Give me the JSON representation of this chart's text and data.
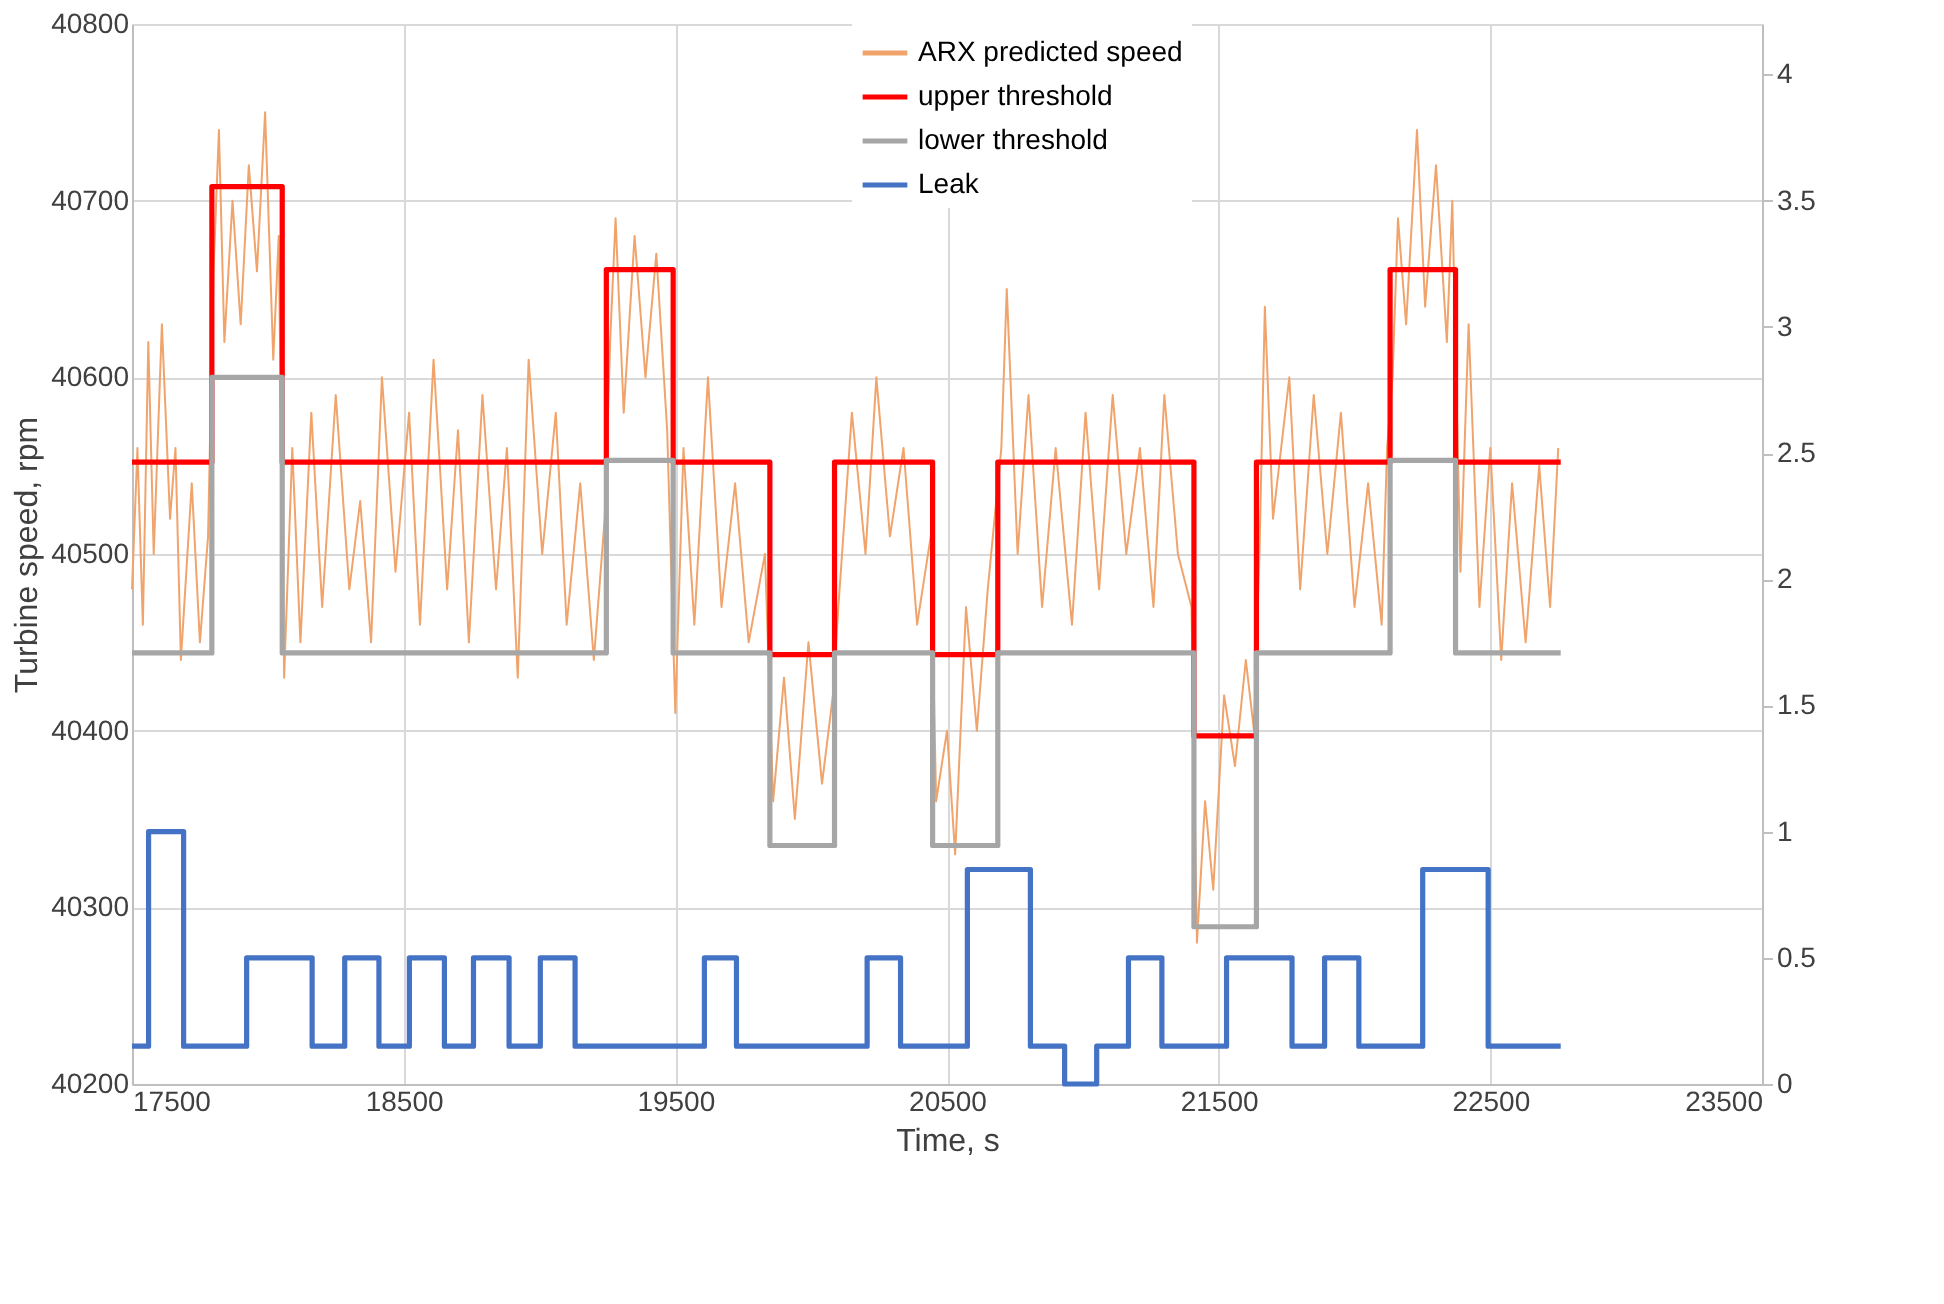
{
  "chart_data": {
    "type": "line",
    "xlabel": "Time, s",
    "ylabel": "Turbine speed, rpm",
    "xlim": [
      17500,
      23500
    ],
    "xticks": [
      17500,
      18500,
      19500,
      20500,
      21500,
      22500,
      23500
    ],
    "ylim": [
      40200,
      40800
    ],
    "yticks": [
      40200,
      40300,
      40400,
      40500,
      40600,
      40700,
      40800
    ],
    "y2lim": [
      0,
      4.2
    ],
    "y2ticks": [
      0,
      0.5,
      1,
      1.5,
      2,
      2.5,
      3,
      3.5,
      4
    ],
    "grid": true,
    "legend": "top",
    "series": [
      {
        "name": "ARX predicted speed",
        "color": "#f0a46c",
        "x": [
          17500,
          17520,
          17540,
          17560,
          17580,
          17610,
          17640,
          17660,
          17680,
          17720,
          17750,
          17780,
          17800,
          17820,
          17840,
          17870,
          17900,
          17930,
          17960,
          17990,
          18020,
          18040,
          18060,
          18090,
          18120,
          18160,
          18200,
          18250,
          18300,
          18340,
          18380,
          18420,
          18470,
          18520,
          18560,
          18610,
          18660,
          18700,
          18740,
          18790,
          18840,
          18880,
          18920,
          18960,
          19010,
          19060,
          19100,
          19150,
          19200,
          19240,
          19260,
          19280,
          19310,
          19350,
          19390,
          19430,
          19470,
          19500,
          19530,
          19570,
          19620,
          19670,
          19720,
          19770,
          19830,
          19860,
          19900,
          19940,
          19990,
          20040,
          20080,
          20100,
          20150,
          20200,
          20240,
          20290,
          20340,
          20390,
          20440,
          20460,
          20500,
          20530,
          20570,
          20610,
          20650,
          20700,
          20720,
          20760,
          20800,
          20850,
          20900,
          20960,
          21010,
          21060,
          21110,
          21160,
          21210,
          21260,
          21300,
          21350,
          21400,
          21420,
          21450,
          21480,
          21520,
          21560,
          21600,
          21630,
          21650,
          21670,
          21700,
          21760,
          21800,
          21850,
          21900,
          21950,
          22000,
          22050,
          22100,
          22120,
          22140,
          22160,
          22190,
          22230,
          22260,
          22300,
          22340,
          22360,
          22390,
          22420,
          22460,
          22500,
          22540,
          22580,
          22630,
          22680,
          22720,
          22750
        ],
        "values": [
          40480,
          40560,
          40460,
          40620,
          40500,
          40630,
          40520,
          40560,
          40440,
          40540,
          40450,
          40510,
          40660,
          40740,
          40620,
          40700,
          40630,
          40720,
          40660,
          40750,
          40610,
          40680,
          40430,
          40560,
          40450,
          40580,
          40470,
          40590,
          40480,
          40530,
          40450,
          40600,
          40490,
          40580,
          40460,
          40610,
          40480,
          40570,
          40450,
          40590,
          40480,
          40560,
          40430,
          40610,
          40500,
          40580,
          40460,
          40540,
          40440,
          40520,
          40620,
          40690,
          40580,
          40680,
          40600,
          40670,
          40570,
          40410,
          40560,
          40460,
          40600,
          40470,
          40540,
          40450,
          40500,
          40360,
          40430,
          40350,
          40450,
          40370,
          40420,
          40470,
          40580,
          40500,
          40600,
          40510,
          40560,
          40460,
          40510,
          40360,
          40400,
          40330,
          40470,
          40400,
          40480,
          40560,
          40650,
          40500,
          40590,
          40470,
          40560,
          40460,
          40580,
          40480,
          40590,
          40500,
          40560,
          40470,
          40590,
          40500,
          40470,
          40280,
          40360,
          40310,
          40420,
          40380,
          40440,
          40400,
          40500,
          40640,
          40520,
          40600,
          40480,
          40590,
          40500,
          40580,
          40470,
          40540,
          40460,
          40560,
          40600,
          40690,
          40630,
          40740,
          40640,
          40720,
          40620,
          40700,
          40490,
          40630,
          40470,
          40560,
          40440,
          40540,
          40450,
          40550,
          40470,
          40560
        ]
      },
      {
        "name": "upper threshold",
        "color": "#ff0000",
        "type": "step",
        "x": [
          17500,
          17794,
          18053,
          19246,
          19492,
          19848,
          20086,
          20447,
          20687,
          21409,
          21639,
          22131,
          22372,
          22759
        ],
        "values": [
          40552,
          40708,
          40552,
          40661,
          40552,
          40443,
          40552,
          40443,
          40552,
          40397,
          40552,
          40661,
          40552,
          40552
        ]
      },
      {
        "name": "lower threshold",
        "color": "#a6a6a6",
        "type": "step",
        "x": [
          17500,
          17794,
          18053,
          19246,
          19492,
          19848,
          20086,
          20447,
          20687,
          21409,
          21639,
          22131,
          22372,
          22759
        ],
        "values": [
          40444,
          40600,
          40444,
          40553,
          40444,
          40335,
          40444,
          40335,
          40444,
          40289,
          40444,
          40553,
          40444,
          40444
        ]
      },
      {
        "name": "Leak",
        "color": "#4472c4",
        "type": "step",
        "axis": "y2",
        "x": [
          17500,
          17561,
          17690,
          17922,
          18163,
          18283,
          18409,
          18521,
          18650,
          18757,
          18888,
          19003,
          19131,
          19607,
          19725,
          20206,
          20329,
          20575,
          20807,
          20933,
          21051,
          21168,
          21291,
          21529,
          21770,
          21890,
          22016,
          22251,
          22492,
          22759
        ],
        "values": [
          0.15,
          1,
          0.15,
          0.5,
          0.15,
          0.5,
          0.15,
          0.5,
          0.15,
          0.5,
          0.15,
          0.5,
          0.15,
          0.5,
          0.15,
          0.5,
          0.15,
          0.85,
          0.15,
          0,
          0.15,
          0.5,
          0.15,
          0.5,
          0.15,
          0.5,
          0.15,
          0.85,
          0.15,
          0.15
        ]
      }
    ]
  }
}
